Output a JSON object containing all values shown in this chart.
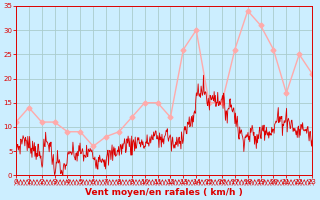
{
  "xlabel": "Vent moyen/en rafales ( km/h )",
  "bg_color": "#cceeff",
  "grid_color": "#aacccc",
  "line_mean_color": "#dd0000",
  "line_gust_color": "#ffaaaa",
  "ylim": [
    0,
    35
  ],
  "xlim": [
    0,
    23
  ],
  "yticks": [
    0,
    5,
    10,
    15,
    20,
    25,
    30,
    35
  ],
  "xticks": [
    0,
    1,
    2,
    3,
    4,
    5,
    6,
    7,
    8,
    9,
    10,
    11,
    12,
    13,
    14,
    15,
    16,
    17,
    18,
    19,
    20,
    21,
    22,
    23
  ],
  "gust_x": [
    0,
    1,
    2,
    3,
    4,
    5,
    6,
    7,
    8,
    9,
    10,
    11,
    12,
    13,
    14,
    15,
    16,
    17,
    18,
    19,
    20,
    21,
    22,
    23
  ],
  "gust_y": [
    11,
    14,
    11,
    11,
    9,
    9,
    6,
    8,
    9,
    12,
    15,
    15,
    12,
    26,
    30,
    15,
    15,
    26,
    34,
    31,
    26,
    17,
    25,
    21
  ],
  "mean_anchors_x": [
    0,
    0.3,
    0.6,
    1.0,
    1.3,
    1.7,
    2.0,
    2.3,
    2.7,
    3.0,
    3.2,
    3.5,
    3.8,
    4.0,
    4.3,
    4.6,
    5.0,
    5.3,
    5.7,
    6.0,
    6.3,
    6.6,
    7.0,
    7.3,
    7.7,
    8.0,
    8.3,
    8.7,
    9.0,
    9.3,
    9.7,
    10.0,
    10.3,
    10.7,
    11.0,
    11.3,
    11.7,
    12.0,
    12.3,
    12.7,
    13.0,
    13.3,
    13.5,
    13.7,
    14.0,
    14.2,
    14.4,
    14.6,
    14.8,
    15.0,
    15.2,
    15.4,
    15.6,
    15.8,
    16.0,
    16.2,
    16.4,
    16.6,
    16.8,
    17.0,
    17.3,
    17.7,
    18.0,
    18.3,
    18.7,
    19.0,
    19.3,
    19.7,
    20.0,
    20.3,
    20.7,
    21.0,
    21.3,
    21.7,
    22.0,
    22.3,
    22.7,
    23.0
  ],
  "mean_anchors_y": [
    6,
    6,
    8,
    6,
    6,
    5,
    3,
    7,
    6,
    1,
    4,
    0,
    2,
    3,
    5,
    4,
    5,
    4,
    5,
    4,
    3,
    4,
    3,
    4,
    5,
    5,
    6,
    7,
    6,
    7,
    7,
    6,
    7,
    8,
    8,
    7,
    9,
    7,
    6,
    7,
    9,
    10,
    11,
    10,
    16,
    18,
    17,
    18,
    16,
    15,
    16,
    17,
    15,
    16,
    15,
    14,
    13,
    15,
    14,
    13,
    9,
    8,
    8,
    9,
    7,
    9,
    10,
    9,
    9,
    12,
    11,
    12,
    11,
    9,
    9,
    10,
    9,
    7
  ]
}
